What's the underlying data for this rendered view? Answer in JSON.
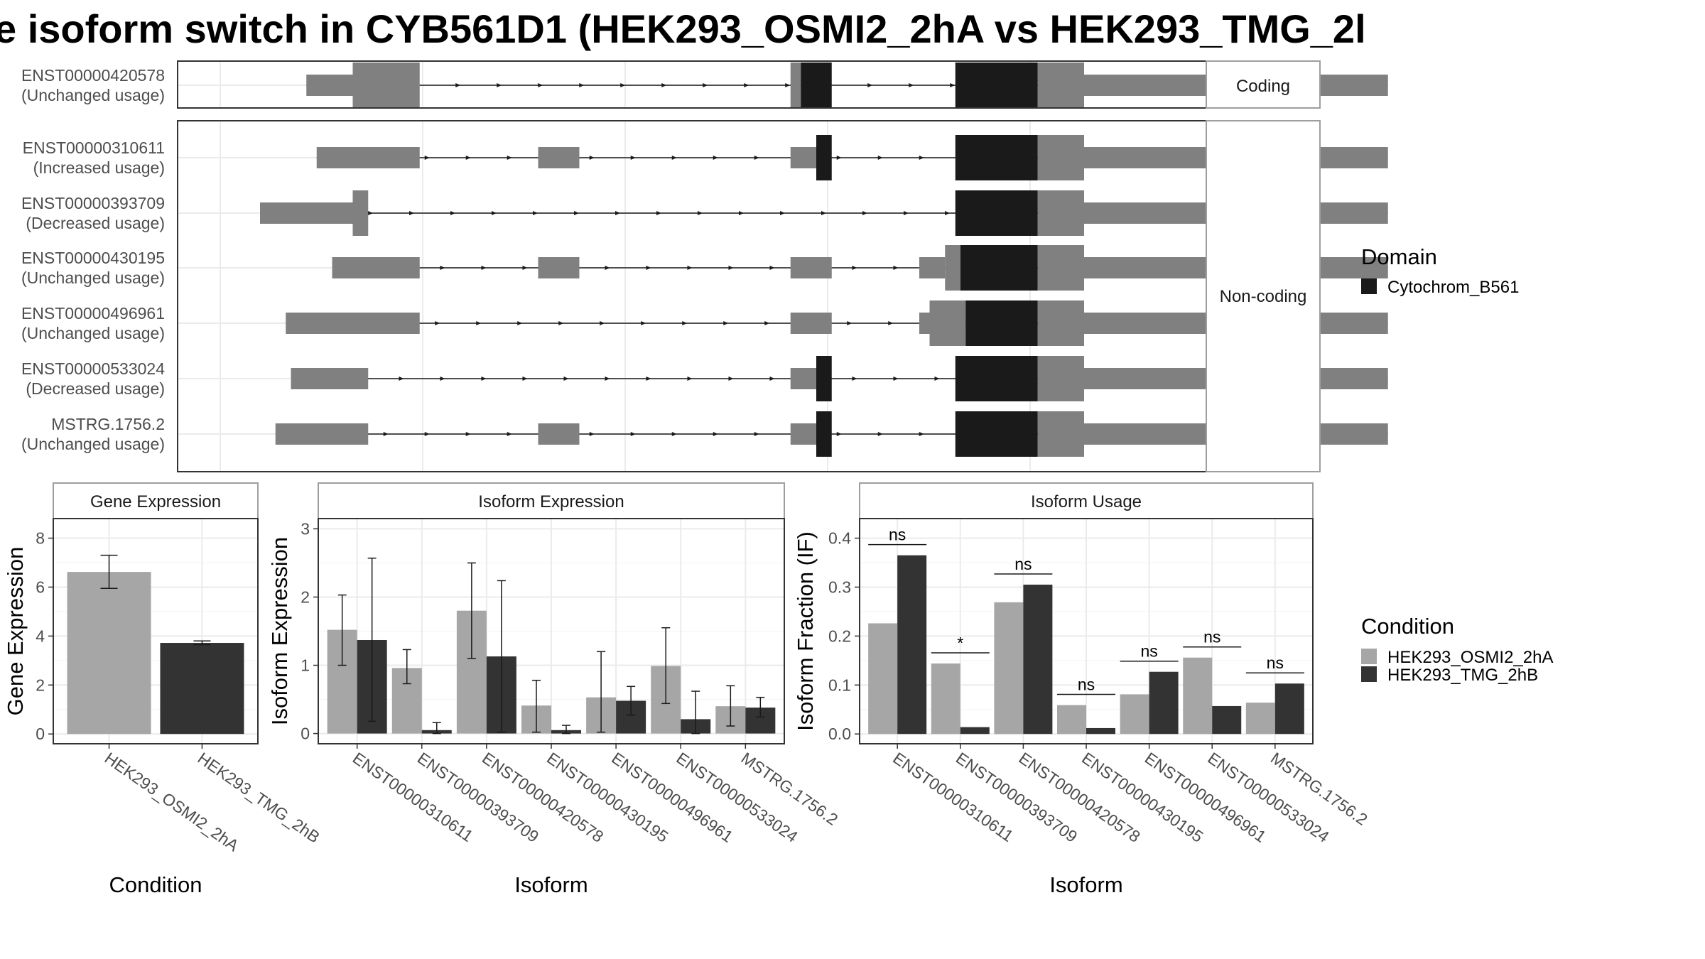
{
  "title": "e isoform switch in CYB561D1 (HEK293_OSMI2_2hA vs HEK293_TMG_2l",
  "colors": {
    "utr": "#808080",
    "domain": "#1a1a1a",
    "condA": "#a6a6a6",
    "condB": "#333333",
    "grid": "#ebebeb",
    "panel_border": "#333333",
    "strip_border": "#9e9e9e"
  },
  "chart_data": [
    {
      "type": "gene-structure",
      "strip_labels": [
        "Coding",
        "Non-coding"
      ],
      "x_range": [
        0,
        100
      ],
      "isoforms": [
        {
          "id": "ENST00000420578",
          "usage": "(Unchanged usage)",
          "group": "Coding",
          "segments": [
            [
              12.5,
              17,
              "utr",
              "thin"
            ],
            [
              17,
              23.5,
              "utr",
              "thick"
            ],
            [
              59.5,
              60.5,
              "utr",
              "thick"
            ],
            [
              60.5,
              63.5,
              "domain",
              "thick"
            ],
            [
              75.5,
              83.5,
              "domain",
              "thick"
            ],
            [
              83.5,
              88,
              "utr",
              "thick"
            ],
            [
              88,
              117.5,
              "utr",
              "thin"
            ]
          ]
        },
        {
          "id": "ENST00000310611",
          "usage": "(Increased usage)",
          "group": "Non-coding",
          "segments": [
            [
              13.5,
              23.5,
              "utr",
              "thin"
            ],
            [
              35,
              39,
              "utr",
              "thin"
            ],
            [
              59.5,
              62,
              "utr",
              "thin"
            ],
            [
              62,
              63.5,
              "domain",
              "thick"
            ],
            [
              75.5,
              83.5,
              "domain",
              "thick"
            ],
            [
              83.5,
              88,
              "utr",
              "thick"
            ],
            [
              88,
              117.5,
              "utr",
              "thin"
            ]
          ]
        },
        {
          "id": "ENST00000393709",
          "usage": "(Decreased usage)",
          "group": "Non-coding",
          "segments": [
            [
              8,
              17,
              "utr",
              "thin"
            ],
            [
              17,
              18.5,
              "utr",
              "thick"
            ],
            [
              75.5,
              83.5,
              "domain",
              "thick"
            ],
            [
              83.5,
              88,
              "utr",
              "thick"
            ],
            [
              88,
              117.5,
              "utr",
              "thin"
            ]
          ]
        },
        {
          "id": "ENST00000430195",
          "usage": "(Unchanged usage)",
          "group": "Non-coding",
          "segments": [
            [
              15,
              23.5,
              "utr",
              "thin"
            ],
            [
              35,
              39,
              "utr",
              "thin"
            ],
            [
              59.5,
              63.5,
              "utr",
              "thin"
            ],
            [
              72,
              74.5,
              "utr",
              "thin"
            ],
            [
              74.5,
              76,
              "utr",
              "thick"
            ],
            [
              76,
              83.5,
              "domain",
              "thick"
            ],
            [
              83.5,
              88,
              "utr",
              "thick"
            ],
            [
              88,
              117.5,
              "utr",
              "thin"
            ]
          ]
        },
        {
          "id": "ENST00000496961",
          "usage": "(Unchanged usage)",
          "group": "Non-coding",
          "segments": [
            [
              10.5,
              23.5,
              "utr",
              "thin"
            ],
            [
              59.5,
              63.5,
              "utr",
              "thin"
            ],
            [
              72,
              73,
              "utr",
              "thin"
            ],
            [
              73,
              76.5,
              "utr",
              "thick"
            ],
            [
              76.5,
              83.5,
              "domain",
              "thick"
            ],
            [
              83.5,
              88,
              "utr",
              "thick"
            ],
            [
              88,
              117.5,
              "utr",
              "thin"
            ]
          ]
        },
        {
          "id": "ENST00000533024",
          "usage": "(Decreased usage)",
          "group": "Non-coding",
          "segments": [
            [
              11,
              18.5,
              "utr",
              "thin"
            ],
            [
              59.5,
              62,
              "utr",
              "thin"
            ],
            [
              62,
              63.5,
              "domain",
              "thick"
            ],
            [
              75.5,
              83.5,
              "domain",
              "thick"
            ],
            [
              83.5,
              88,
              "utr",
              "thick"
            ],
            [
              88,
              117.5,
              "utr",
              "thin"
            ]
          ]
        },
        {
          "id": "MSTRG.1756.2",
          "usage": "(Unchanged usage)",
          "group": "Non-coding",
          "segments": [
            [
              9.5,
              18.5,
              "utr",
              "thin"
            ],
            [
              35,
              39,
              "utr",
              "thin"
            ],
            [
              59.5,
              62,
              "utr",
              "thin"
            ],
            [
              62,
              63.5,
              "domain",
              "thick"
            ],
            [
              75.5,
              83.5,
              "domain",
              "thick"
            ],
            [
              83.5,
              88,
              "utr",
              "thick"
            ],
            [
              88,
              117.5,
              "utr",
              "thin"
            ]
          ]
        }
      ],
      "legend": {
        "title": "Domain",
        "entries": [
          "Cytochrom_B561"
        ]
      }
    },
    {
      "type": "bar",
      "strip": "Gene Expression",
      "xlabel": "Condition",
      "ylabel": "Gene Expression",
      "categories": [
        "HEK293_OSMI2_2hA",
        "HEK293_TMG_2hB"
      ],
      "values": [
        6.62,
        3.72
      ],
      "errors": [
        [
          5.95,
          7.3
        ],
        [
          3.65,
          3.8
        ]
      ],
      "ylim": [
        -0.4,
        8.8
      ],
      "yticks": [
        "0",
        "2",
        "4",
        "6",
        "8"
      ]
    },
    {
      "type": "bar",
      "strip": "Isoform Expression",
      "xlabel": "Isoform",
      "ylabel": "Isoform Expression",
      "categories": [
        "ENST00000310611",
        "ENST00000393709",
        "ENST00000420578",
        "ENST00000430195",
        "ENST00000496961",
        "ENST00000533024",
        "MSTRG.1756.2"
      ],
      "series": [
        {
          "name": "HEK293_OSMI2_2hA",
          "values": [
            1.52,
            0.96,
            1.8,
            0.41,
            0.53,
            0.99,
            0.4
          ],
          "errors": [
            [
              1.0,
              2.03
            ],
            [
              0.73,
              1.23
            ],
            [
              1.1,
              2.5
            ],
            [
              0.02,
              0.78
            ],
            [
              0.02,
              1.2
            ],
            [
              0.44,
              1.55
            ],
            [
              0.11,
              0.7
            ]
          ]
        },
        {
          "name": "HEK293_TMG_2hB",
          "values": [
            1.37,
            0.05,
            1.13,
            0.05,
            0.48,
            0.21,
            0.38
          ],
          "errors": [
            [
              0.18,
              2.57
            ],
            [
              0.0,
              0.16
            ],
            [
              0.02,
              2.24
            ],
            [
              0.0,
              0.12
            ],
            [
              0.27,
              0.69
            ],
            [
              0.0,
              0.62
            ],
            [
              0.24,
              0.53
            ]
          ]
        }
      ],
      "ylim": [
        -0.15,
        3.15
      ],
      "yticks": [
        "0",
        "1",
        "2",
        "3"
      ]
    },
    {
      "type": "bar",
      "strip": "Isoform Usage",
      "xlabel": "Isoform",
      "ylabel": "Isoform Fraction (IF)",
      "categories": [
        "ENST00000310611",
        "ENST00000393709",
        "ENST00000420578",
        "ENST00000430195",
        "ENST00000496961",
        "ENST00000533024",
        "MSTRG.1756.2"
      ],
      "series": [
        {
          "name": "HEK293_OSMI2_2hA",
          "values": [
            0.226,
            0.144,
            0.269,
            0.059,
            0.081,
            0.156,
            0.064
          ]
        },
        {
          "name": "HEK293_TMG_2hB",
          "values": [
            0.365,
            0.014,
            0.305,
            0.012,
            0.127,
            0.057,
            0.103
          ]
        }
      ],
      "significance": [
        "ns",
        "*",
        "ns",
        "ns",
        "ns",
        "ns",
        "ns"
      ],
      "ylim": [
        -0.02,
        0.44
      ],
      "yticks": [
        "0.0",
        "0.1",
        "0.2",
        "0.3",
        "0.4"
      ],
      "legend": {
        "title": "Condition",
        "entries": [
          "HEK293_OSMI2_2hA",
          "HEK293_TMG_2hB"
        ]
      }
    }
  ]
}
